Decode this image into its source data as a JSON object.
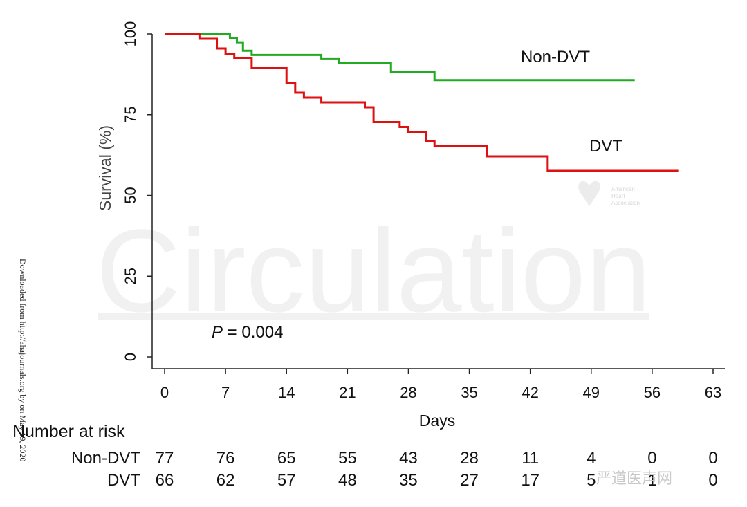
{
  "chart_data": {
    "type": "line",
    "step": true,
    "xlabel": "Days",
    "ylabel": "Survival (%)",
    "xlim": [
      0,
      63
    ],
    "ylim": [
      0,
      100
    ],
    "xticks": [
      0,
      7,
      14,
      21,
      28,
      35,
      42,
      49,
      56,
      63
    ],
    "yticks": [
      0,
      25,
      50,
      75,
      100
    ],
    "series": [
      {
        "name": "Non-DVT",
        "color": "#22aa22",
        "x": [
          0,
          7,
          7.5,
          8.3,
          9,
          10,
          18,
          20,
          26,
          31,
          54
        ],
        "y": [
          100,
          100,
          98.7,
          97.4,
          94.8,
          93.5,
          92.2,
          90.9,
          88.3,
          85.7,
          85.7
        ]
      },
      {
        "name": "DVT",
        "color": "#dd1111",
        "x": [
          0,
          4,
          6,
          7,
          8,
          10,
          14,
          15,
          16,
          18,
          23,
          24,
          27,
          28,
          30,
          31,
          37,
          44,
          59
        ],
        "y": [
          100,
          98.5,
          95.5,
          93.9,
          92.4,
          89.4,
          84.8,
          81.8,
          80.3,
          78.8,
          77.3,
          72.7,
          71.2,
          69.7,
          66.7,
          65.2,
          62.1,
          57.6,
          57.6
        ]
      }
    ],
    "p_label": "P",
    "p_value": "= 0.004",
    "risk_table": {
      "title": "Number at risk",
      "rows": [
        {
          "label": "Non-DVT",
          "values": [
            "77",
            "76",
            "65",
            "55",
            "43",
            "28",
            "11",
            "4",
            "0",
            "0"
          ]
        },
        {
          "label": "DVT",
          "values": [
            "66",
            "62",
            "57",
            "48",
            "35",
            "27",
            "17",
            "5",
            "1",
            "0"
          ]
        }
      ]
    },
    "watermark": "Circulation",
    "logo_text": [
      "American",
      "Heart",
      "Association"
    ]
  },
  "side_note": "Downloaded from http://ahajournals.org by on May 19, 2020",
  "wechat_mark": "严道医声网"
}
